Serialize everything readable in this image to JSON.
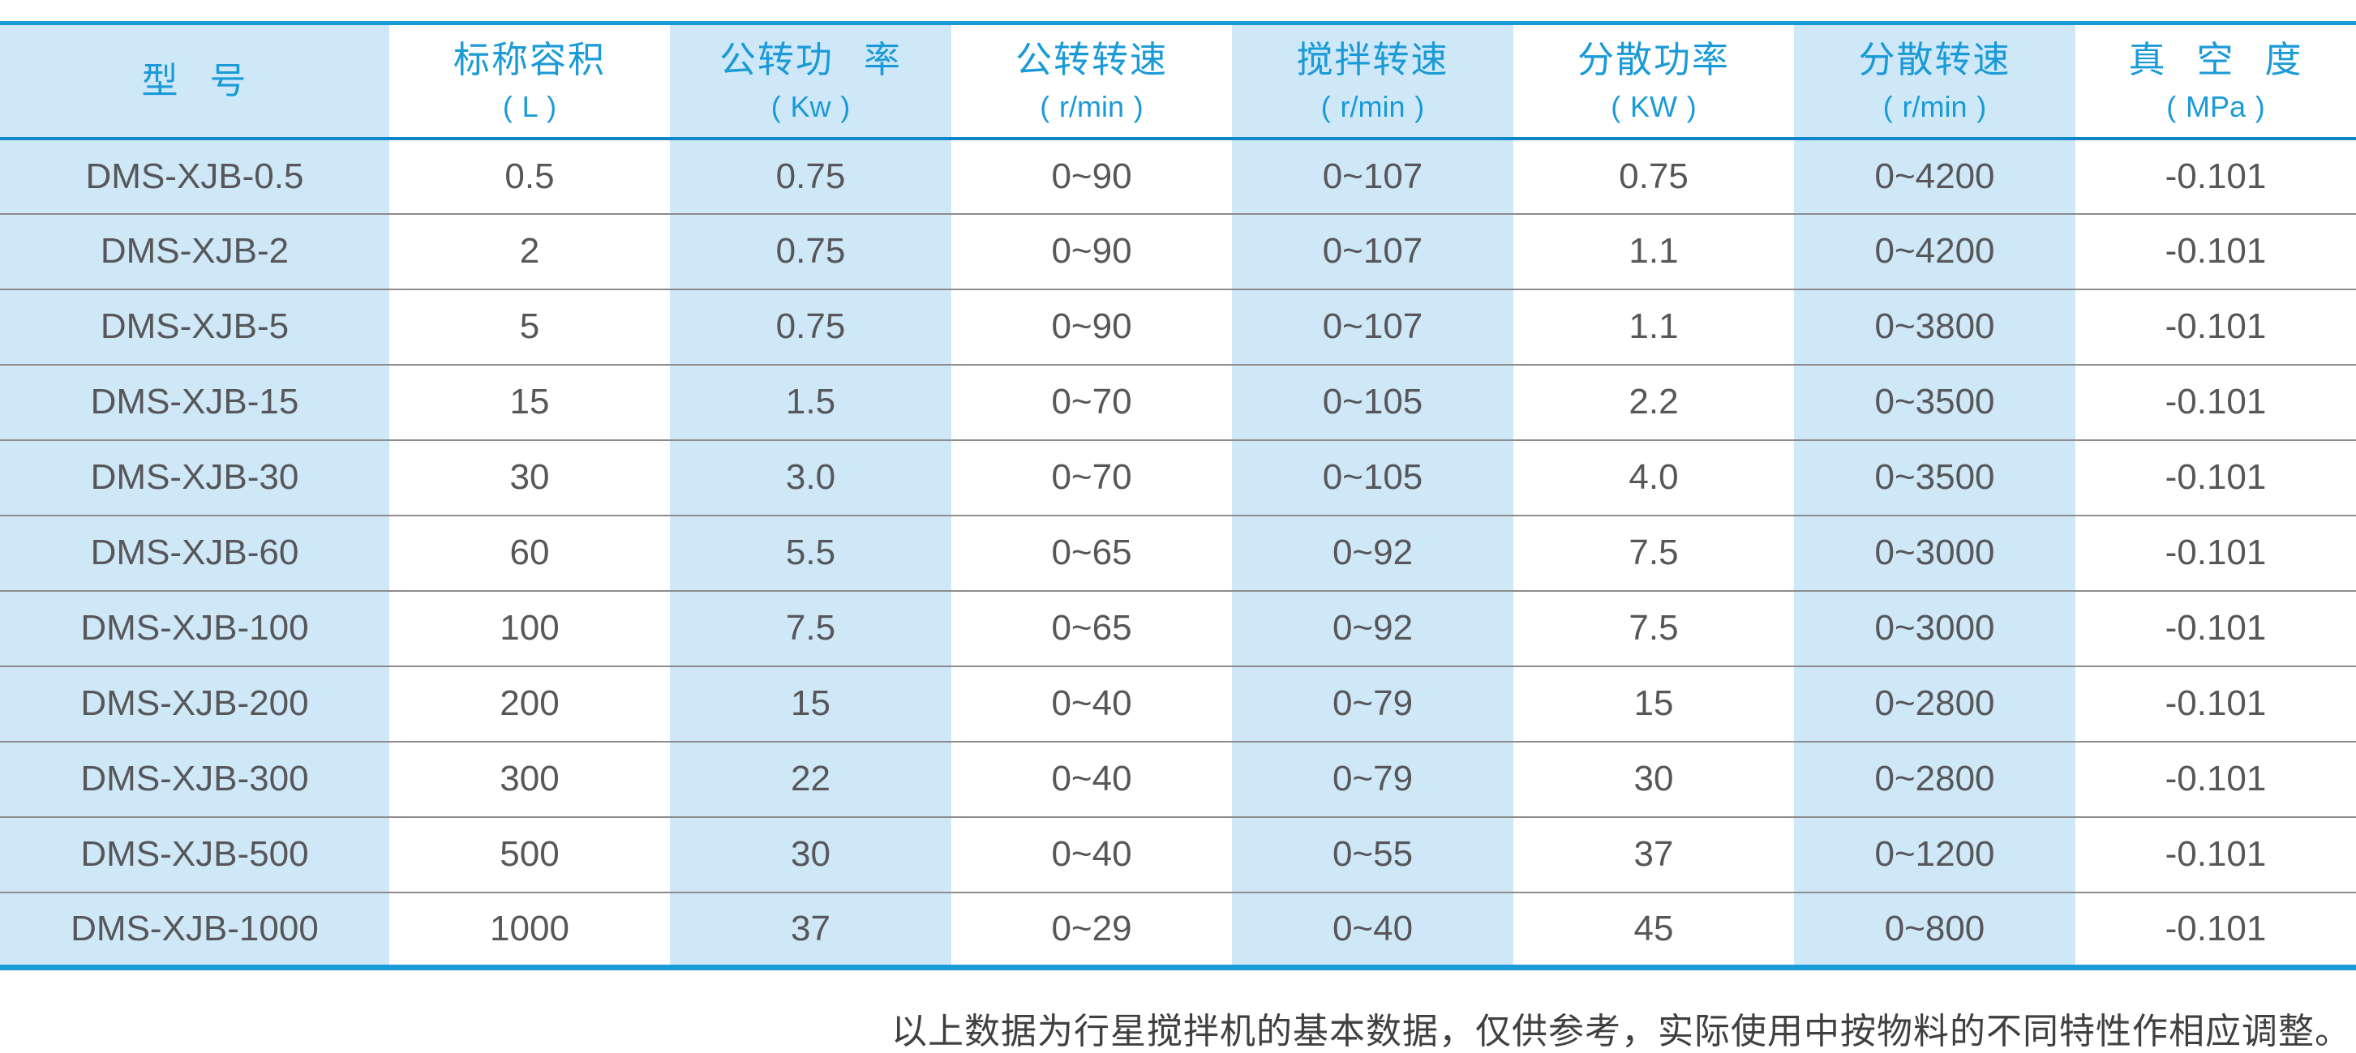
{
  "table": {
    "columns": [
      {
        "label": "型 号",
        "unit": ""
      },
      {
        "label": "标称容积",
        "unit": "( L )"
      },
      {
        "label": "公转功 率",
        "unit": "( Kw )"
      },
      {
        "label": "公转转速",
        "unit": "( r/min )"
      },
      {
        "label": "搅拌转速",
        "unit": "( r/min )"
      },
      {
        "label": "分散功率",
        "unit": "( KW )"
      },
      {
        "label": "分散转速",
        "unit": "( r/min )"
      },
      {
        "label": "真 空 度",
        "unit": "( MPa )"
      }
    ],
    "rows": [
      [
        "DMS-XJB-0.5",
        "0.5",
        "0.75",
        "0~90",
        "0~107",
        "0.75",
        "0~4200",
        "-0.101"
      ],
      [
        "DMS-XJB-2",
        "2",
        "0.75",
        "0~90",
        "0~107",
        "1.1",
        "0~4200",
        "-0.101"
      ],
      [
        "DMS-XJB-5",
        "5",
        "0.75",
        "0~90",
        "0~107",
        "1.1",
        "0~3800",
        "-0.101"
      ],
      [
        "DMS-XJB-15",
        "15",
        "1.5",
        "0~70",
        "0~105",
        "2.2",
        "0~3500",
        "-0.101"
      ],
      [
        "DMS-XJB-30",
        "30",
        "3.0",
        "0~70",
        "0~105",
        "4.0",
        "0~3500",
        "-0.101"
      ],
      [
        "DMS-XJB-60",
        "60",
        "5.5",
        "0~65",
        "0~92",
        "7.5",
        "0~3000",
        "-0.101"
      ],
      [
        "DMS-XJB-100",
        "100",
        "7.5",
        "0~65",
        "0~92",
        "7.5",
        "0~3000",
        "-0.101"
      ],
      [
        "DMS-XJB-200",
        "200",
        "15",
        "0~40",
        "0~79",
        "15",
        "0~2800",
        "-0.101"
      ],
      [
        "DMS-XJB-300",
        "300",
        "22",
        "0~40",
        "0~79",
        "30",
        "0~2800",
        "-0.101"
      ],
      [
        "DMS-XJB-500",
        "500",
        "30",
        "0~40",
        "0~55",
        "37",
        "0~1200",
        "-0.101"
      ],
      [
        "DMS-XJB-1000",
        "1000",
        "37",
        "0~29",
        "0~40",
        "45",
        "0~800",
        "-0.101"
      ]
    ],
    "footnote": "以上数据为行星搅拌机的基本数据，仅供参考，实际使用中按物料的不同特性作相应调整。"
  },
  "colors": {
    "accent_blue": "#1a9ad7",
    "header_underline_blue": "#0f86c9",
    "band_light_blue": "#cfe8f8",
    "body_text_gray": "#57575a",
    "row_separator_gray": "#8c8c8c",
    "footnote_gray": "#404040",
    "background": "#ffffff"
  }
}
